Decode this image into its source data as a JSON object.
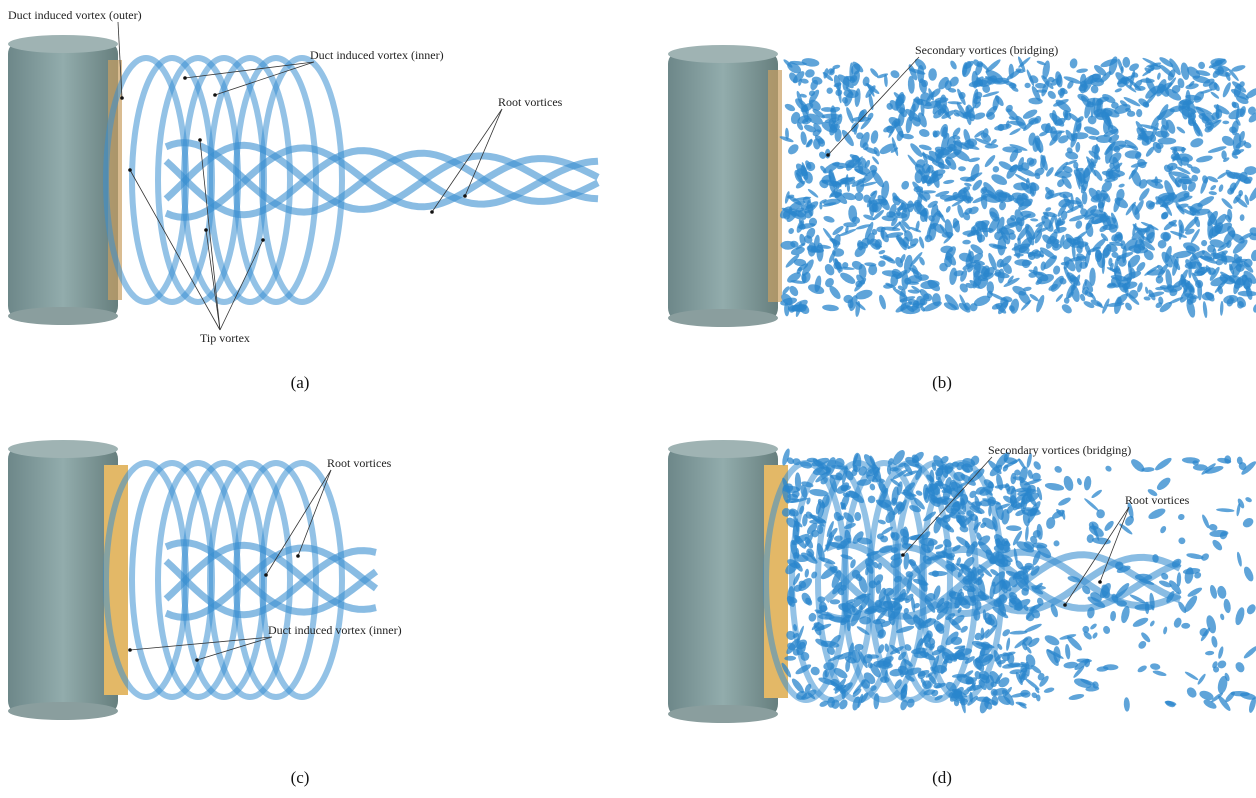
{
  "panels": [
    {
      "label": "(a)",
      "annotations": [
        {
          "text": "Duct induced vortex (outer)"
        },
        {
          "text": "Duct induced vortex (inner)"
        },
        {
          "text": "Root vortices"
        },
        {
          "text": "Tip vortex"
        }
      ]
    },
    {
      "label": "(b)",
      "annotations": [
        {
          "text": "Secondary vortices (bridging)"
        }
      ]
    },
    {
      "label": "(c)",
      "annotations": [
        {
          "text": "Root vortices"
        },
        {
          "text": "Duct induced vortex (inner)"
        }
      ]
    },
    {
      "label": "(d)",
      "annotations": [
        {
          "text": "Secondary vortices (bridging)"
        },
        {
          "text": "Root vortices"
        }
      ]
    }
  ]
}
